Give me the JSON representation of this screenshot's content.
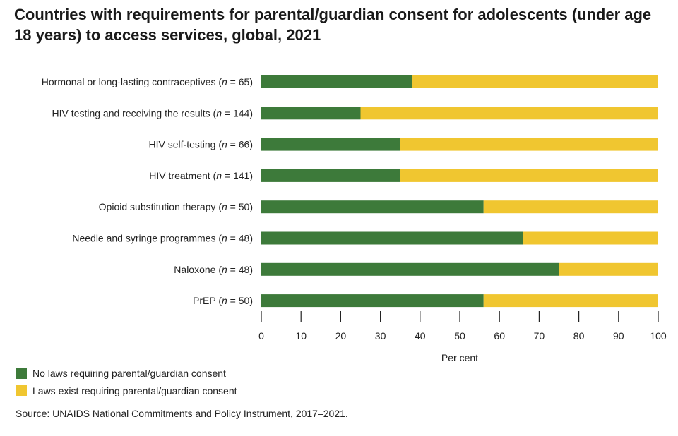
{
  "title": "Countries with requirements for parental/guardian consent for adolescents (under age 18 years) to access services, global, 2021",
  "source": "Source: UNAIDS National Commitments and Policy Instrument, 2017–2021.",
  "colors": {
    "no_laws": "#3d7a3a",
    "laws_exist": "#f0c630"
  },
  "chart_data": {
    "type": "bar",
    "orientation": "horizontal",
    "stacked": true,
    "categories": [
      {
        "label": "Hormonal or long-lasting contraceptives",
        "n": "65"
      },
      {
        "label": "HIV testing and receiving the results",
        "n": "144"
      },
      {
        "label": "HIV self-testing",
        "n": "66"
      },
      {
        "label": "HIV treatment",
        "n": "141"
      },
      {
        "label": "Opioid substitution therapy",
        "n": "50"
      },
      {
        "label": "Needle and syringe programmes",
        "n": "48"
      },
      {
        "label": "Naloxone",
        "n": "48"
      },
      {
        "label": "PrEP",
        "n": "50"
      }
    ],
    "series": [
      {
        "name": "No laws requiring parental/guardian consent",
        "color": "#3d7a3a",
        "values": [
          38,
          25,
          35,
          35,
          56,
          66,
          75,
          56
        ]
      },
      {
        "name": "Laws exist requiring parental/guardian consent",
        "color": "#f0c630",
        "values": [
          62,
          75,
          65,
          65,
          44,
          34,
          25,
          44
        ]
      }
    ],
    "xlabel": "Per cent",
    "xlim": [
      0,
      100
    ],
    "xticks": [
      "0",
      "10",
      "20",
      "30",
      "40",
      "50",
      "60",
      "70",
      "80",
      "90",
      "100"
    ],
    "legend_position": "bottom-left",
    "grid": false
  }
}
